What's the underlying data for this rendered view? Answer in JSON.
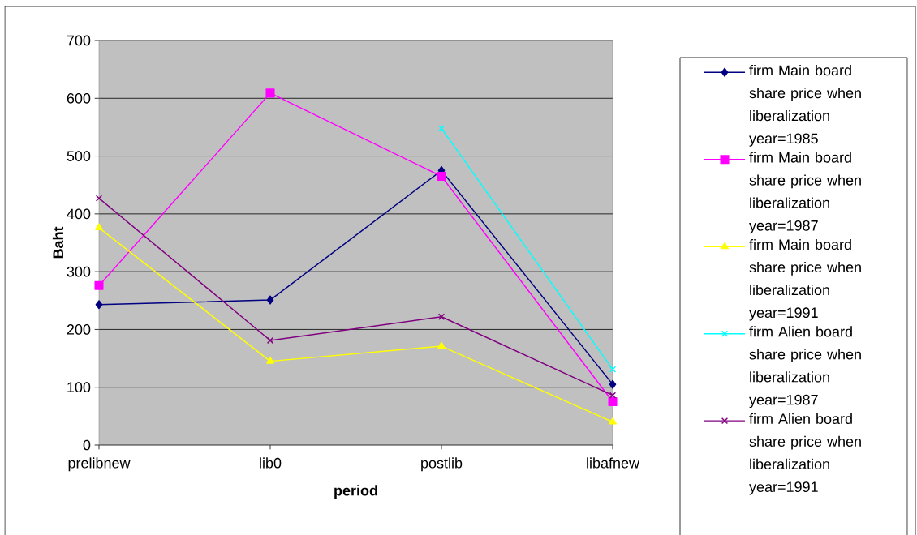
{
  "chart_data": {
    "type": "line",
    "xlabel": "period",
    "ylabel": "Baht",
    "categories": [
      "prelibnew",
      "lib0",
      "postlib",
      "libafnew"
    ],
    "series": [
      {
        "name": "firm Main board share price when liberalization year=1985",
        "color": "#000080",
        "marker": "diamond",
        "values": [
          243,
          251,
          475,
          105
        ]
      },
      {
        "name": "firm Main board share price when liberalization year=1987",
        "color": "#ff00ff",
        "marker": "square",
        "values": [
          276,
          609,
          465,
          75
        ]
      },
      {
        "name": "firm Main board share price when liberalization year=1991",
        "color": "#ffff00",
        "marker": "triangle",
        "values": [
          376,
          145,
          171,
          40
        ]
      },
      {
        "name": "firm Alien board share price when liberalization year=1987",
        "color": "#00ffff",
        "marker": "cross",
        "values": [
          null,
          null,
          548,
          131
        ]
      },
      {
        "name": "firm Alien board share price when liberalization year=1991",
        "color": "#800080",
        "marker": "cross",
        "values": [
          427,
          181,
          222,
          86
        ]
      }
    ],
    "ylim": [
      0,
      700
    ],
    "yticks": [
      0,
      100,
      200,
      300,
      400,
      500,
      600,
      700
    ],
    "grid": "y",
    "legend": "right"
  }
}
